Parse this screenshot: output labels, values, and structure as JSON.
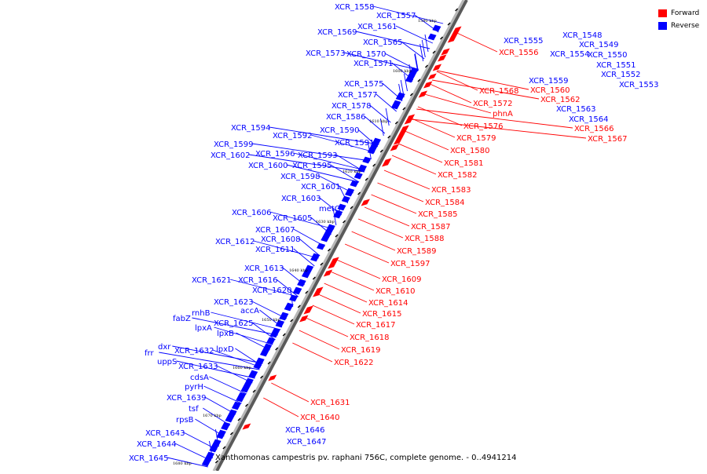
{
  "caption": "Xanthomonas campestris pv. raphani 756C, complete genome. - 0..4941214",
  "legend": [
    {
      "label": "Forward",
      "color": "#ff0000"
    },
    {
      "label": "Reverse",
      "color": "#0000ff"
    }
  ],
  "colors": {
    "forward": "#ff0000",
    "reverse": "#0000ff",
    "axis": "#7a7a7a"
  },
  "ticks": [
    "1590 kbp",
    "1600 kbp",
    "1610 kbp",
    "1620 kbp",
    "1630 kbp",
    "1640 kbp",
    "1650 kbp",
    "1660 kbp",
    "1670 kbp",
    "1680 kbp"
  ],
  "reverse_genes": [
    "XCR_1558",
    "XCR_1557",
    "XCR_1561",
    "XCR_1569",
    "XCR_1565",
    "XCR_1573",
    "XCR_1570",
    "XCR_1571",
    "XCR_1575",
    "XCR_1577",
    "XCR_1578",
    "XCR_1586",
    "XCR_1594",
    "XCR_1592",
    "XCR_1590",
    "XCR_1591",
    "XCR_1599",
    "XCR_1596",
    "XCR_1593",
    "XCR_1602",
    "XCR_1600",
    "XCR_1595",
    "XCR_1598",
    "XCR_1601",
    "XCR_1603",
    "metG",
    "XCR_1606",
    "XCR_1605",
    "XCR_1607",
    "XCR_1608",
    "XCR_1612",
    "XCR_1611",
    "XCR_1613",
    "XCR_1621",
    "XCR_1616",
    "XCR_1620",
    "XCR_1623",
    "rnhB",
    "accA",
    "fabZ",
    "XCR_1625",
    "lpxA",
    "lpxB",
    "dxr",
    "XCR_1632",
    "lpxD",
    "frr",
    "uppS",
    "XCR_1633",
    "cdsA",
    "pyrH",
    "XCR_1639",
    "tsf",
    "rpsB",
    "XCR_1643",
    "XCR_1644",
    "XCR_1645",
    "XCR_1646",
    "XCR_1647",
    "XCR_1548",
    "XCR_1555",
    "XCR_1549",
    "XCR_1554",
    "XCR_1550",
    "XCR_1551",
    "XCR_1552",
    "XCR_1553",
    "XCR_1559",
    "XCR_1563",
    "XCR_1564"
  ],
  "forward_genes": [
    "XCR_1556",
    "XCR_1560",
    "XCR_1568",
    "XCR_1562",
    "XCR_1572",
    "phnA",
    "XCR_1566",
    "XCR_1567",
    "XCR_1576",
    "XCR_1579",
    "XCR_1580",
    "XCR_1581",
    "XCR_1582",
    "XCR_1583",
    "XCR_1584",
    "XCR_1585",
    "XCR_1587",
    "XCR_1588",
    "XCR_1589",
    "XCR_1597",
    "XCR_1609",
    "XCR_1610",
    "XCR_1614",
    "XCR_1615",
    "XCR_1617",
    "XCR_1618",
    "XCR_1619",
    "XCR_1622",
    "XCR_1631",
    "XCR_1640"
  ]
}
